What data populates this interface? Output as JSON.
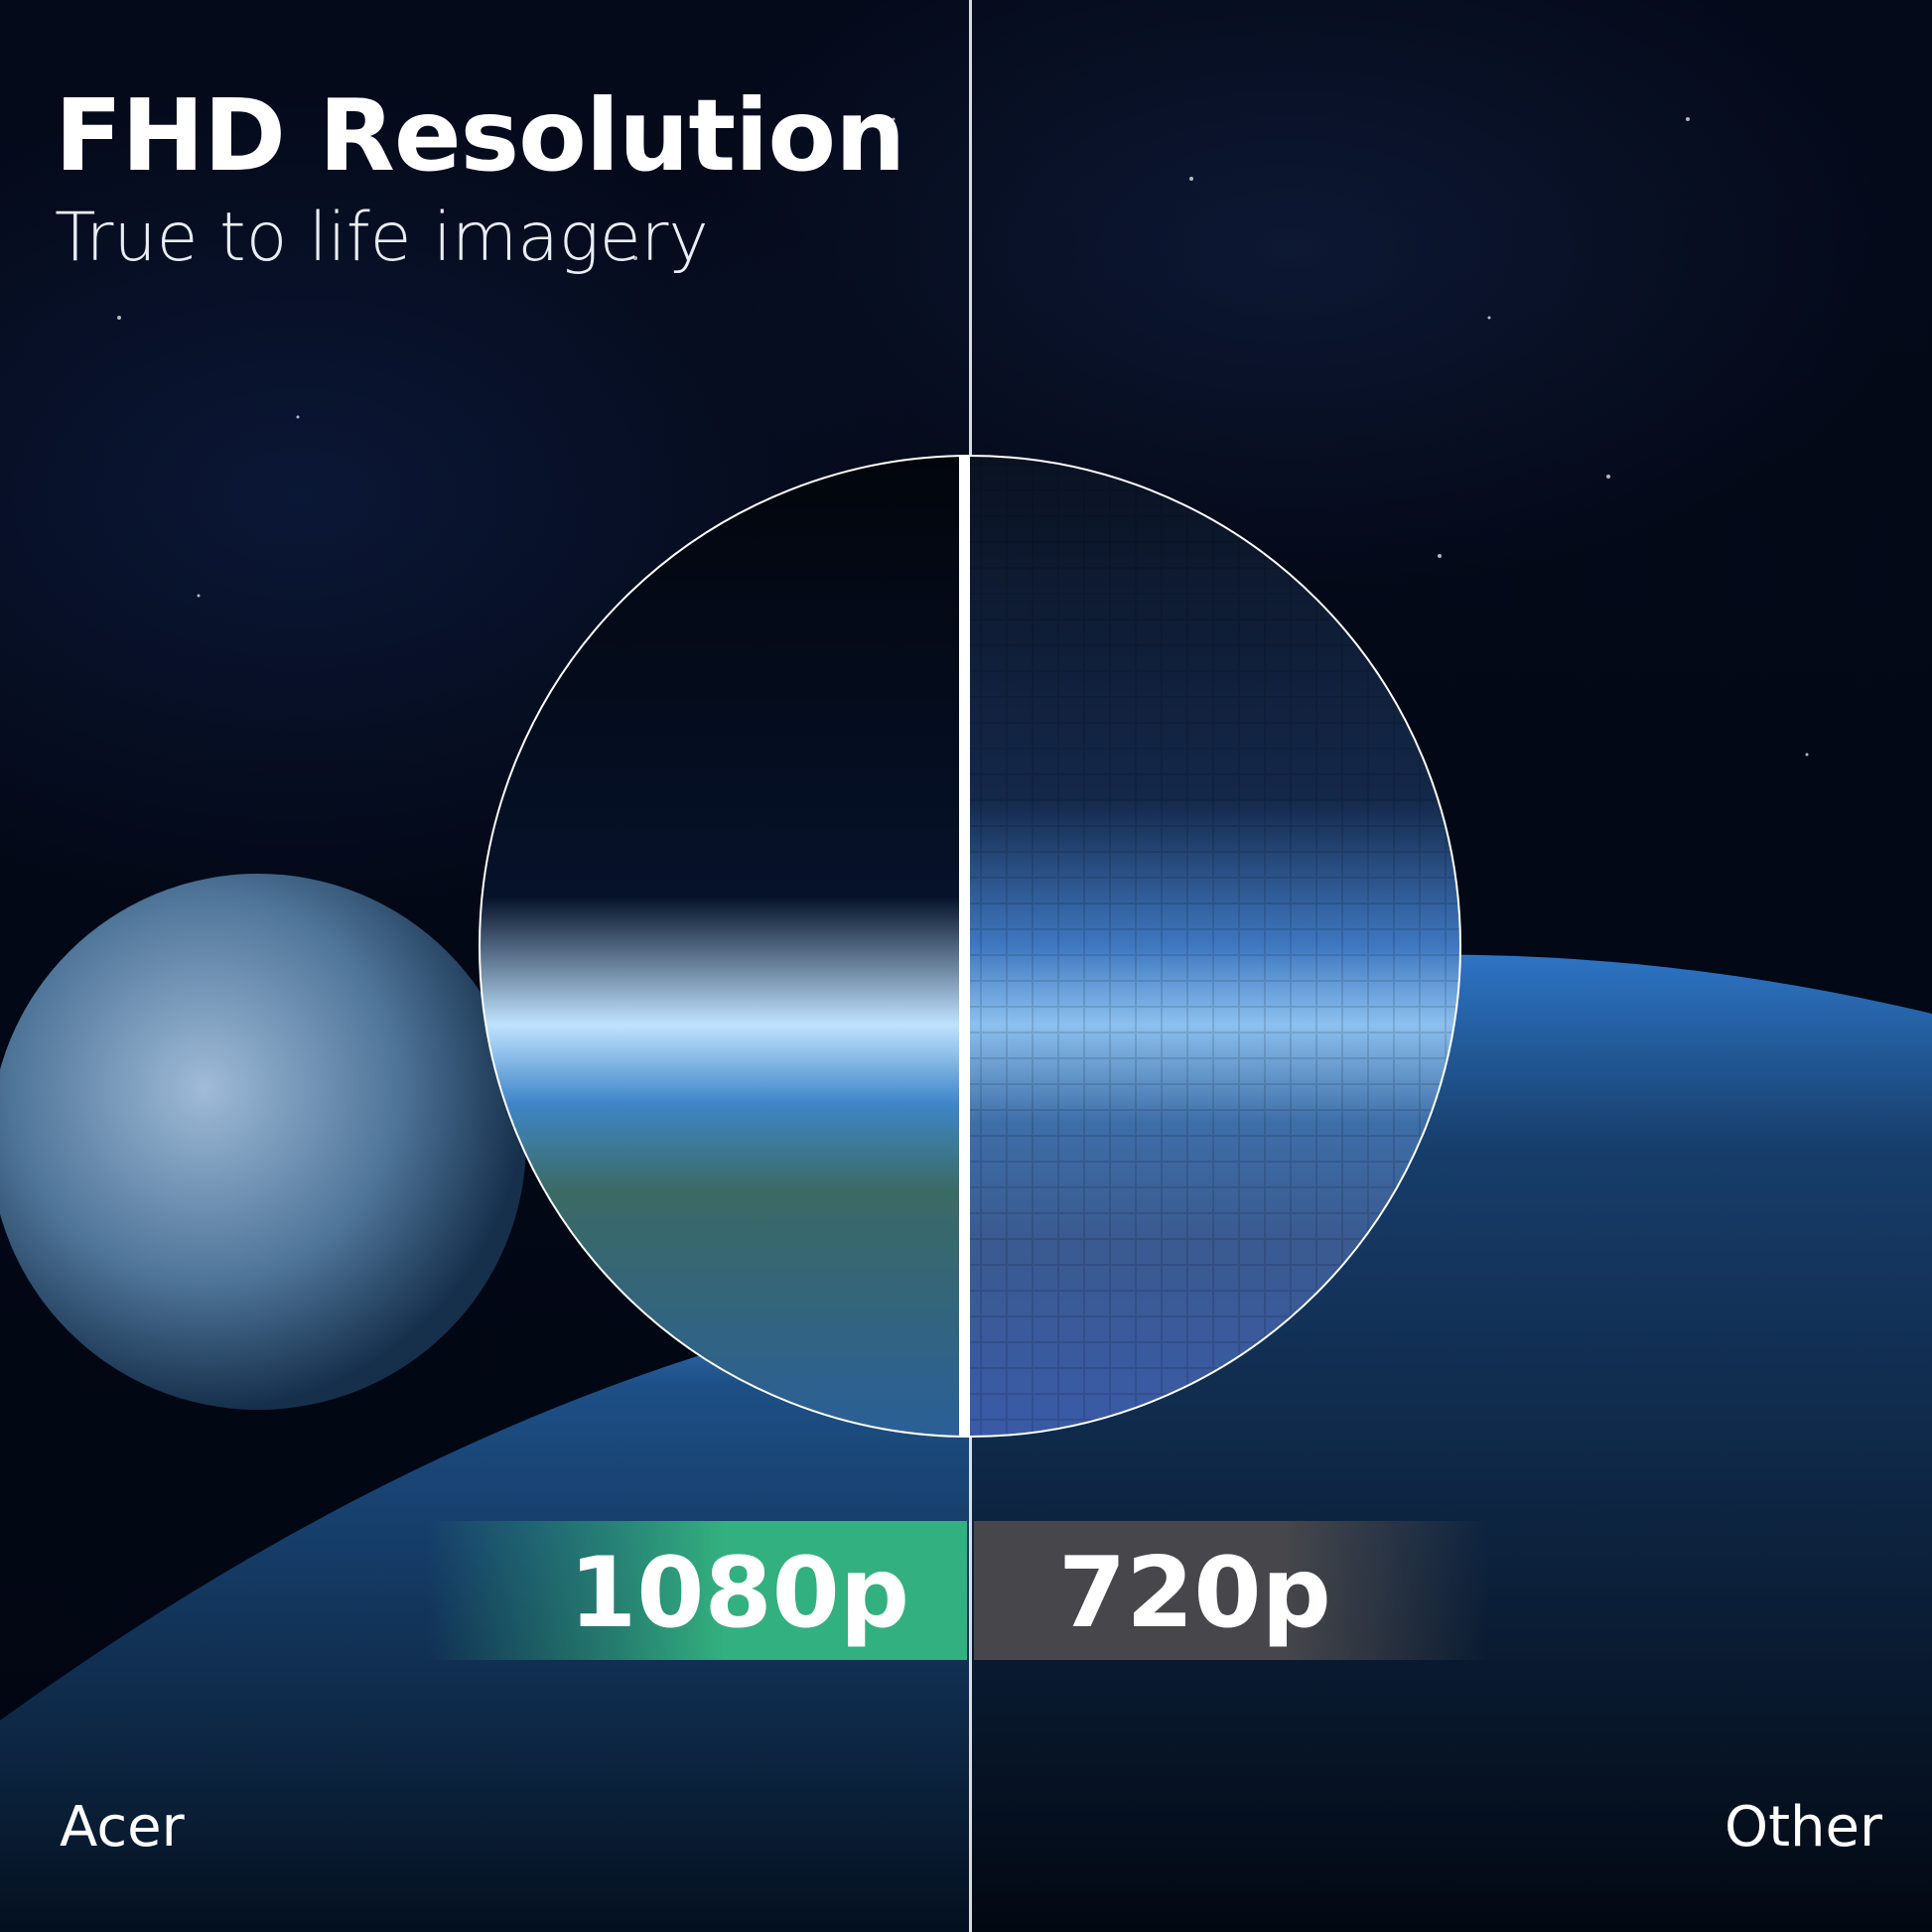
{
  "header": {
    "title": "FHD Resolution",
    "subtitle": "True to life imagery"
  },
  "comparison": {
    "left": {
      "resolution": "1080p",
      "label": "Acer",
      "color": "#33b07f"
    },
    "right": {
      "resolution": "720p",
      "label": "Other",
      "color": "#47474b"
    }
  }
}
